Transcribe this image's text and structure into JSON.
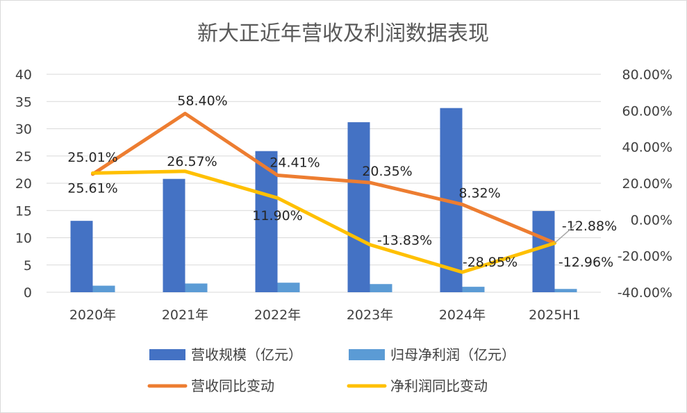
{
  "chart_data": {
    "type": "bar+line",
    "title": "新大正近年营收及利润数据表现",
    "categories": [
      "2020年",
      "2021年",
      "2022年",
      "2023年",
      "2024年",
      "2025H1"
    ],
    "y_left": {
      "ylim": [
        0,
        40
      ],
      "ticks": [
        "0",
        "5",
        "10",
        "15",
        "20",
        "25",
        "30",
        "35",
        "40"
      ]
    },
    "y_right": {
      "ylim": [
        -0.4,
        0.8
      ],
      "ticks": [
        "-40.00%",
        "-20.00%",
        "0.00%",
        "20.00%",
        "40.00%",
        "60.00%",
        "80.00%"
      ]
    },
    "grid": true,
    "legend_position": "bottom",
    "series": [
      {
        "name": "营收规模（亿元）",
        "kind": "bar",
        "axis": "left",
        "color": "#4472C4",
        "values": [
          13.1,
          20.8,
          25.9,
          31.2,
          33.8,
          14.9
        ]
      },
      {
        "name": "归母净利润（亿元）",
        "kind": "bar",
        "axis": "left",
        "color": "#5B9BD5",
        "values": [
          1.2,
          1.6,
          1.75,
          1.5,
          1.0,
          0.6
        ]
      },
      {
        "name": "营收同比变动",
        "kind": "line",
        "axis": "right",
        "color": "#ED7D31",
        "values": [
          0.2501,
          0.584,
          0.2441,
          0.2035,
          0.0832,
          -0.1288
        ],
        "labels": [
          "25.01%",
          "58.40%",
          "24.41%",
          "20.35%",
          "8.32%",
          "-12.88%"
        ]
      },
      {
        "name": "净利润同比变动",
        "kind": "line",
        "axis": "right",
        "color": "#FFC000",
        "values": [
          0.2561,
          0.2657,
          0.119,
          -0.1383,
          -0.2895,
          -0.1296
        ],
        "labels": [
          "25.61%",
          "26.57%",
          "11.90%",
          "-13.83%",
          "-28.95%",
          "-12.96%"
        ]
      }
    ]
  }
}
